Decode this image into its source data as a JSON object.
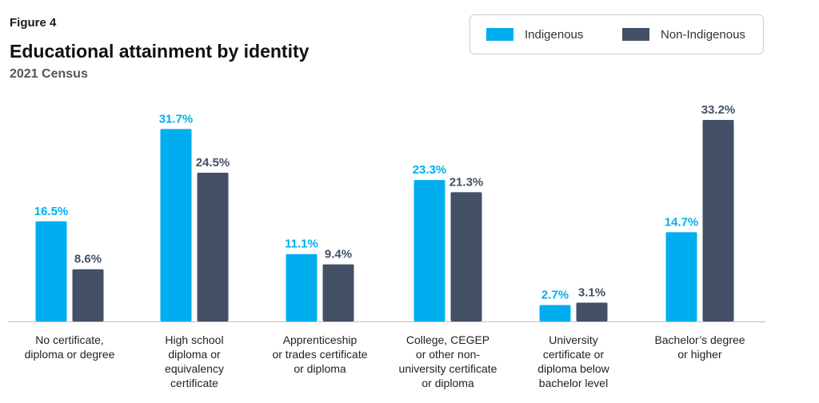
{
  "figure_label": "Figure 4",
  "chart_data": {
    "type": "bar",
    "title": "Educational attainment by identity",
    "subtitle": "2021 Census",
    "categories": [
      [
        "No certificate,",
        "diploma or degree"
      ],
      [
        "High school",
        "diploma or",
        "equivalency",
        "certificate"
      ],
      [
        "Apprenticeship",
        "or trades certificate",
        "or diploma"
      ],
      [
        "College, CEGEP",
        "or other non-",
        "university certificate",
        "or diploma"
      ],
      [
        "University",
        "certificate or",
        "diploma below",
        "bachelor level"
      ],
      [
        "Bachelor’s degree",
        "or higher"
      ]
    ],
    "series": [
      {
        "name": "Indigenous",
        "color": "#00aeef",
        "values": [
          16.5,
          31.7,
          11.1,
          23.3,
          2.7,
          14.7
        ],
        "labels": [
          "16.5%",
          "31.7%",
          "11.1%",
          "23.3%",
          "2.7%",
          "14.7%"
        ]
      },
      {
        "name": "Non-Indigenous",
        "color": "#435065",
        "values": [
          8.6,
          24.5,
          9.4,
          21.3,
          3.1,
          33.2
        ],
        "labels": [
          "8.6%",
          "24.5%",
          "9.4%",
          "21.3%",
          "3.1%",
          "33.2%"
        ]
      }
    ],
    "ylim": [
      0,
      35
    ],
    "grid": false,
    "legend_position": "top-right",
    "xlabel": "",
    "ylabel": ""
  }
}
